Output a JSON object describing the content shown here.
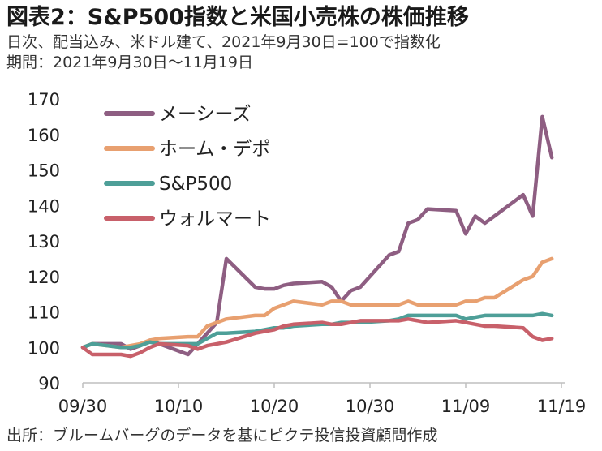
{
  "header": {
    "title": "図表2：S&P500指数と米国小売株の株価推移",
    "subtitle": "日次、配当込み、米ドル建て、2021年9月30日=100で指数化",
    "period": "期間：2021年9月30日～11月19日"
  },
  "footer": {
    "source": "出所：ブルームバーグのデータを基にピクテ投信投資顧問作成"
  },
  "chart_data": {
    "type": "line",
    "title": "図表2：S&P500指数と米国小売株の株価推移",
    "ylim": [
      90,
      170
    ],
    "yticks": [
      90,
      100,
      110,
      120,
      130,
      140,
      150,
      160,
      170
    ],
    "xlim": [
      "2021-09-30",
      "2021-11-19"
    ],
    "xticks": [
      {
        "date": "2021-09-30",
        "label": "09/30"
      },
      {
        "date": "2021-10-10",
        "label": "10/10"
      },
      {
        "date": "2021-10-20",
        "label": "10/20"
      },
      {
        "date": "2021-10-30",
        "label": "10/30"
      },
      {
        "date": "2021-11-09",
        "label": "11/09"
      },
      {
        "date": "2021-11-19",
        "label": "11/19"
      }
    ],
    "grid": false,
    "legend": "top-left",
    "x": [
      "2021-09-30",
      "2021-10-01",
      "2021-10-04",
      "2021-10-05",
      "2021-10-06",
      "2021-10-07",
      "2021-10-08",
      "2021-10-11",
      "2021-10-12",
      "2021-10-13",
      "2021-10-14",
      "2021-10-15",
      "2021-10-18",
      "2021-10-19",
      "2021-10-20",
      "2021-10-21",
      "2021-10-22",
      "2021-10-25",
      "2021-10-26",
      "2021-10-27",
      "2021-10-28",
      "2021-10-29",
      "2021-11-01",
      "2021-11-02",
      "2021-11-03",
      "2021-11-04",
      "2021-11-05",
      "2021-11-08",
      "2021-11-09",
      "2021-11-10",
      "2021-11-11",
      "2021-11-12",
      "2021-11-15",
      "2021-11-16",
      "2021-11-17",
      "2021-11-18",
      "2021-11-19"
    ],
    "series": [
      {
        "name": "メーシーズ",
        "color": "#8e5e82",
        "values": [
          100,
          101,
          101,
          99.5,
          100.5,
          102,
          101,
          98,
          101,
          104,
          107,
          125,
          117,
          116.5,
          116.5,
          117.5,
          118,
          118.5,
          117,
          113,
          116,
          117,
          126,
          127,
          135,
          136,
          139,
          138.5,
          132,
          137,
          135,
          137,
          143,
          137,
          165,
          153.5,
          null
        ]
      },
      {
        "name": "ホーム・デポ",
        "color": "#e8a070",
        "values": [
          100,
          101,
          100,
          100.5,
          101,
          102,
          102.5,
          103,
          103,
          106,
          107,
          108,
          109,
          109,
          111,
          112,
          113,
          112,
          113,
          113,
          112,
          112,
          112,
          112,
          113,
          112,
          112,
          112,
          113,
          113,
          114,
          114,
          119,
          120,
          124,
          125,
          null
        ]
      },
      {
        "name": "S&P500",
        "color": "#4e9f98",
        "values": [
          100,
          101,
          100,
          100,
          100.5,
          101.5,
          101,
          101,
          101,
          102.5,
          104,
          104,
          104.5,
          105,
          105.5,
          105.5,
          106,
          106.5,
          106.5,
          107,
          107,
          107,
          107.5,
          108,
          109,
          109,
          109,
          109,
          108,
          108.5,
          109,
          109,
          109,
          109,
          109.5,
          109,
          null
        ]
      },
      {
        "name": "ウォルマート",
        "color": "#c8606a",
        "values": [
          100,
          98,
          98,
          97.5,
          98.5,
          100,
          101,
          100.5,
          99.5,
          100.5,
          101,
          101.5,
          104,
          104.5,
          105,
          106,
          106.5,
          107,
          106.5,
          106.5,
          107,
          107.5,
          107.5,
          107.5,
          108,
          107.5,
          107,
          107.5,
          107,
          106.5,
          106,
          106,
          105.5,
          103,
          102,
          102.5,
          null
        ]
      }
    ]
  }
}
